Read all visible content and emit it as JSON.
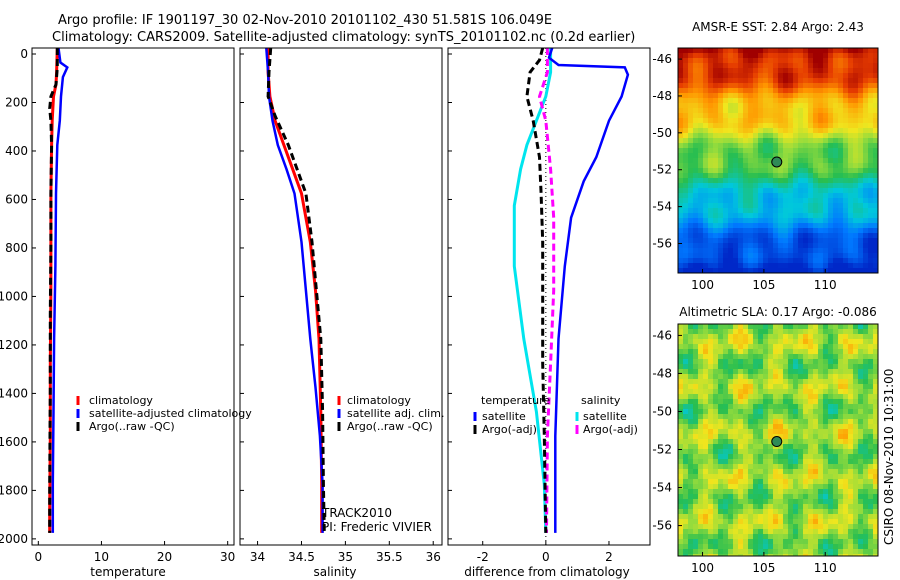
{
  "header": {
    "line1": "Argo profile: IF 1901197_30 02-Nov-2010 20101102_430 51.581S 106.049E",
    "line2": "Climatology: CARS2009. Satellite-adjusted climatology: synTS_20101102.nc (0.2d earlier)"
  },
  "colors": {
    "climatology": "#ff0000",
    "satellite": "#0000ff",
    "argo": "#000000",
    "sal_satellite": "#00e5ee",
    "sal_argo": "#ff00ff",
    "sst_marker": "#2e8b57"
  },
  "chart_data": [
    {
      "type": "line",
      "panel": "temperature",
      "xlabel": "temperature",
      "xlim": [
        -1,
        31
      ],
      "ylim": [
        2050,
        0
      ],
      "xticks": [
        "0",
        "10",
        "20",
        "30"
      ],
      "yticks": [
        "0",
        "200",
        "400",
        "600",
        "800",
        "1000",
        "1200",
        "1400",
        "1600",
        "1800",
        "2000"
      ],
      "series": [
        {
          "name": "climatology",
          "style": "solid",
          "x": [
            3.0,
            2.9,
            2.8,
            2.4,
            2.2,
            2.1,
            2.0,
            2.0,
            2.0,
            1.9,
            1.9,
            1.8,
            1.8
          ],
          "y": [
            0,
            100,
            150,
            200,
            300,
            400,
            600,
            800,
            1000,
            1300,
            1600,
            1900,
            2000
          ]
        },
        {
          "name": "satellite-adjusted climatology",
          "style": "solid",
          "x": [
            3.2,
            3.5,
            4.6,
            3.9,
            3.6,
            3.4,
            3.0,
            2.8,
            2.7,
            2.5,
            2.4,
            2.3,
            2.3
          ],
          "y": [
            0,
            60,
            80,
            120,
            200,
            300,
            400,
            600,
            900,
            1200,
            1500,
            1800,
            2000
          ]
        },
        {
          "name": "Argo(..raw -QC)",
          "style": "dashed",
          "x": [
            3.0,
            3.0,
            2.8,
            2.0,
            1.8,
            2.0,
            2.1,
            2.0,
            2.0,
            1.9,
            1.9,
            1.8,
            1.8
          ],
          "y": [
            0,
            80,
            150,
            200,
            250,
            300,
            400,
            600,
            800,
            1100,
            1400,
            1800,
            2000
          ]
        }
      ],
      "legend": [
        "climatology",
        "satellite-adjusted climatology",
        "Argo(..raw -QC)"
      ]
    },
    {
      "type": "line",
      "panel": "salinity",
      "xlabel": "salinity",
      "xlim": [
        33.8,
        36.1
      ],
      "ylim": [
        2050,
        0
      ],
      "xticks": [
        "34",
        "34.5",
        "35",
        "35.5",
        "36"
      ],
      "series": [
        {
          "name": "climatology",
          "style": "solid",
          "x": [
            34.12,
            34.12,
            34.14,
            34.2,
            34.3,
            34.4,
            34.5,
            34.6,
            34.66,
            34.7,
            34.72,
            34.73,
            34.73
          ],
          "y": [
            0,
            100,
            200,
            300,
            400,
            500,
            600,
            800,
            1000,
            1200,
            1500,
            1800,
            2000
          ]
        },
        {
          "name": "satellite adj. clim.",
          "style": "solid",
          "x": [
            34.1,
            34.12,
            34.13,
            34.17,
            34.23,
            34.33,
            34.42,
            34.5,
            34.55,
            34.6,
            34.66,
            34.71,
            34.74,
            34.74
          ],
          "y": [
            0,
            100,
            200,
            300,
            400,
            500,
            600,
            800,
            1000,
            1200,
            1400,
            1600,
            1800,
            2000
          ]
        },
        {
          "name": "Argo(..raw -QC)",
          "style": "dashed",
          "x": [
            34.15,
            34.13,
            34.12,
            34.2,
            34.35,
            34.45,
            34.55,
            34.62,
            34.67,
            34.72,
            34.74,
            34.75,
            34.76
          ],
          "y": [
            0,
            100,
            200,
            280,
            400,
            500,
            600,
            800,
            1000,
            1200,
            1500,
            1800,
            2000
          ]
        }
      ],
      "legend": [
        "climatology",
        "satellite adj. clim.",
        "Argo(..raw -QC)"
      ],
      "annotation": [
        "TRACK2010",
        "PI: Frederic VIVIER"
      ]
    },
    {
      "type": "line",
      "panel": "difference",
      "xlabel": "difference from climatology",
      "xlim": [
        -3.1,
        3.3
      ],
      "ylim": [
        2050,
        0
      ],
      "xticks": [
        "-2",
        "0",
        "2"
      ],
      "series": [
        {
          "name": "temperature satellite",
          "style": "solid",
          "x": [
            0.2,
            0.1,
            0.4,
            2.5,
            2.6,
            2.4,
            2.0,
            1.6,
            1.2,
            0.8,
            0.6,
            0.4,
            0.3,
            0.3
          ],
          "y": [
            0,
            40,
            70,
            80,
            110,
            200,
            300,
            450,
            550,
            700,
            900,
            1200,
            1600,
            2000
          ]
        },
        {
          "name": "temperature Argo(-adj)",
          "style": "dashed",
          "x": [
            -0.1,
            -0.2,
            -0.5,
            -0.6,
            -0.4,
            -0.2,
            -0.15,
            -0.1,
            -0.1,
            -0.1,
            -0.05,
            0.0
          ],
          "y": [
            0,
            50,
            100,
            200,
            300,
            450,
            600,
            800,
            1000,
            1300,
            1600,
            2000
          ]
        },
        {
          "name": "salinity satellite",
          "style": "solid",
          "x": [
            0.15,
            0.15,
            0.0,
            -0.3,
            -0.6,
            -0.8,
            -1.0,
            -1.0,
            -0.7,
            -0.3,
            -0.05,
            0.0
          ],
          "y": [
            0,
            100,
            200,
            300,
            400,
            500,
            650,
            900,
            1200,
            1500,
            1800,
            2000
          ]
        },
        {
          "name": "salinity Argo(-adj)",
          "style": "dashed",
          "x": [
            0.05,
            0.05,
            -0.2,
            0.0,
            0.15,
            0.25,
            0.25,
            0.15,
            0.05,
            0.02
          ],
          "y": [
            0,
            100,
            200,
            300,
            500,
            700,
            1000,
            1300,
            1600,
            2000
          ]
        }
      ],
      "legend_left_title": "temperature",
      "legend_right_title": "salinity",
      "legend_left": [
        "satellite",
        "Argo(-adj)"
      ],
      "legend_right": [
        "satellite",
        "Argo(-adj)"
      ]
    },
    {
      "type": "heatmap",
      "panel": "sst_map",
      "title": "AMSR-E SST: 2.84 Argo: 2.43",
      "xticks": [
        "100",
        "105",
        "110"
      ],
      "yticks": [
        "-46",
        "-48",
        "-50",
        "-52",
        "-54",
        "-56"
      ],
      "marker": {
        "lon": 106.05,
        "lat": -51.58
      }
    },
    {
      "type": "heatmap",
      "panel": "sla_map",
      "title": "Altimetric SLA: 0.17 Argo: -0.086",
      "xticks": [
        "100",
        "105",
        "110"
      ],
      "yticks": [
        "-46",
        "-48",
        "-50",
        "-52",
        "-54",
        "-56"
      ],
      "marker": {
        "lon": 106.05,
        "lat": -51.58
      }
    }
  ],
  "footer": {
    "vertical_note": "CSIRO 08-Nov-2010 10:31:00"
  }
}
